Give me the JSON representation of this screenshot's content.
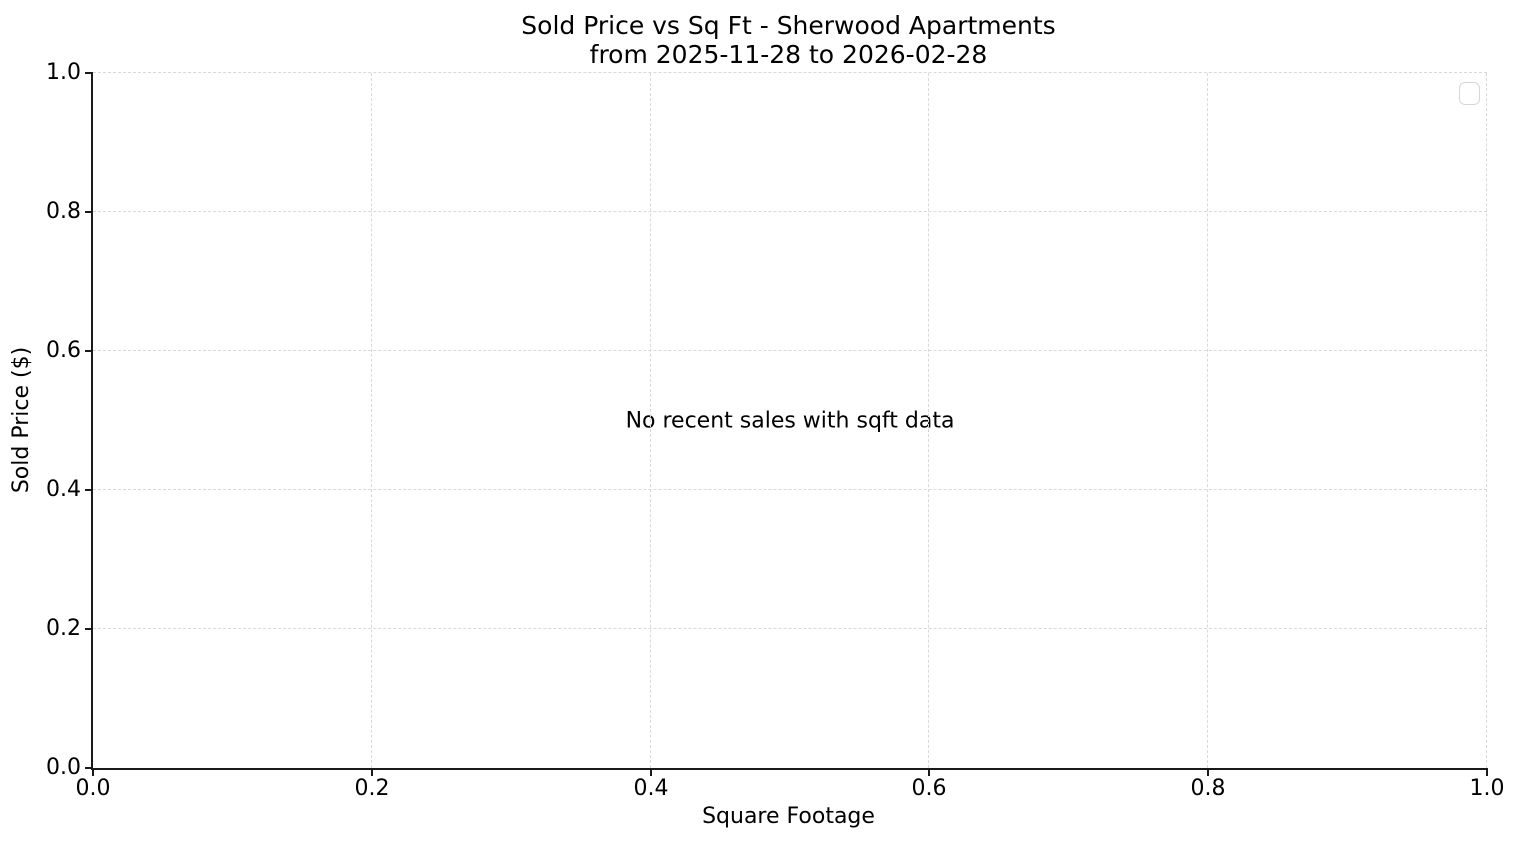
{
  "chart_data": {
    "type": "scatter",
    "title": "Sold Price vs Sq Ft - Sherwood Apartments",
    "subtitle": "from 2025-11-28 to 2026-02-28",
    "xlabel": "Square Footage",
    "ylabel": "Sold Price ($)",
    "xlim": [
      0.0,
      1.0
    ],
    "ylim": [
      0.0,
      1.0
    ],
    "xticks": [
      "0.0",
      "0.2",
      "0.4",
      "0.6",
      "0.8",
      "1.0"
    ],
    "yticks": [
      "0.0",
      "0.2",
      "0.4",
      "0.6",
      "0.8",
      "1.0"
    ],
    "series": [],
    "annotation": "No recent sales with sqft data",
    "grid": {
      "visible": true,
      "style": "dashed"
    },
    "legend": {
      "visible": true,
      "entries": [],
      "position": "upper right"
    }
  },
  "colors": {
    "background": "#ffffff",
    "text": "#000000",
    "grid": "#d9d9d9",
    "spine": "#1a1a1a",
    "legend_border": "#d6d6d6"
  }
}
